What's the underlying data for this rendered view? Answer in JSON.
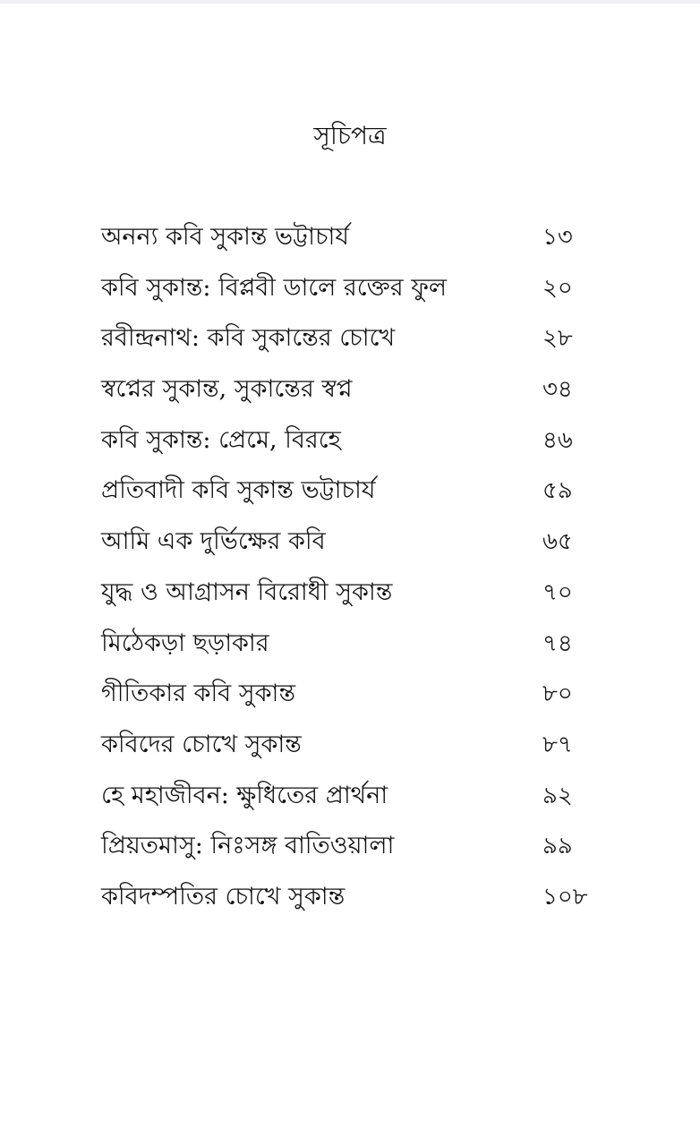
{
  "title": "সূচিপত্র",
  "entries": [
    {
      "title": "অনন্য কবি সুকান্ত ভট্টাচার্য",
      "page": "১৩"
    },
    {
      "title": "কবি সুকান্ত: বিপ্লবী ডালে রক্তের ফুল",
      "page": "২০"
    },
    {
      "title": "রবীন্দ্রনাথ: কবি সুকান্তের চোখে",
      "page": "২৮"
    },
    {
      "title": "স্বপ্নের সুকান্ত, সুকান্তের স্বপ্ন",
      "page": "৩৪"
    },
    {
      "title": "কবি সুকান্ত: প্রেমে, বিরহে",
      "page": "৪৬"
    },
    {
      "title": "প্রতিবাদী কবি সুকান্ত ভট্টাচার্য",
      "page": "৫৯"
    },
    {
      "title": "আমি এক দুর্ভিক্ষের কবি",
      "page": "৬৫"
    },
    {
      "title": "যুদ্ধ ও আগ্রাসন বিরোধী সুকান্ত",
      "page": "৭০"
    },
    {
      "title": "মিঠেকড়া ছড়াকার",
      "page": "৭৪"
    },
    {
      "title": "গীতিকার কবি সুকান্ত",
      "page": "৮০"
    },
    {
      "title": "কবিদের চোখে সুকান্ত",
      "page": "৮৭"
    },
    {
      "title": "হে মহাজীবন: ক্ষুধিতের প্রার্থনা",
      "page": "৯২"
    },
    {
      "title": "প্রিয়তমাসু: নিঃসঙ্গ বাতিওয়ালা",
      "page": "৯৯"
    },
    {
      "title": "কবিদম্পতির চোখে সুকান্ত",
      "page": "১০৮"
    }
  ]
}
